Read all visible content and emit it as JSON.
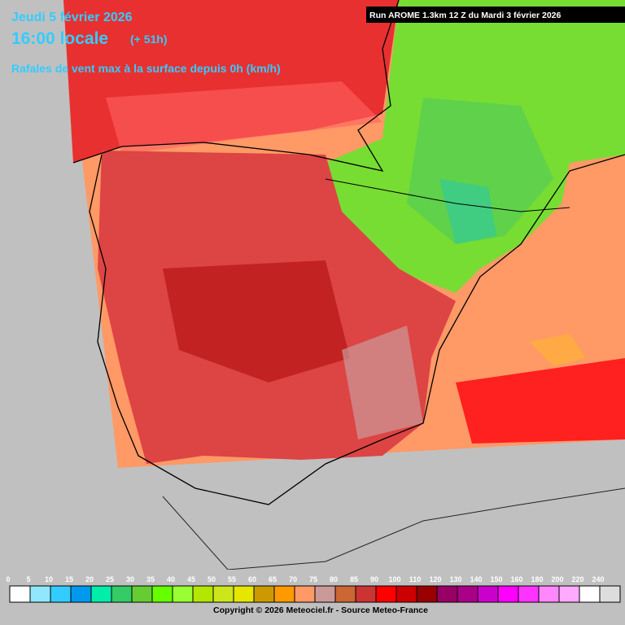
{
  "header": {
    "date": "Jeudi 5 février 2026",
    "time": "16:00 locale",
    "lead": "(+ 51h)",
    "parameter": "Rafales de vent max à la surface depuis 0h (km/h)",
    "run": "Run AROME 1.3km 12 Z du Mardi 3 février 2026"
  },
  "legend": {
    "values": [
      0,
      5,
      10,
      15,
      20,
      25,
      30,
      35,
      40,
      45,
      50,
      55,
      60,
      65,
      70,
      75,
      80,
      85,
      90,
      100,
      110,
      120,
      130,
      140,
      150,
      160,
      180,
      200,
      220,
      240
    ],
    "colors": [
      "#ffffff",
      "#8fe8ff",
      "#33ccff",
      "#0099ee",
      "#00eeaa",
      "#33cc66",
      "#66cc33",
      "#66ff00",
      "#99ff33",
      "#b3e600",
      "#cce61a",
      "#e6e600",
      "#cc9900",
      "#ff9900",
      "#ff9966",
      "#cc9999",
      "#cc6633",
      "#cc3333",
      "#ff0000",
      "#cc0000",
      "#990000",
      "#990066",
      "#aa0088",
      "#cc00cc",
      "#ff00ff",
      "#ff33ff",
      "#ff88ff",
      "#ffaaff",
      "#ffffff",
      "#dddddd"
    ]
  },
  "footer": {
    "copyright": "Copyright © 2026 Meteociel.fr - Source Meteo-France"
  }
}
